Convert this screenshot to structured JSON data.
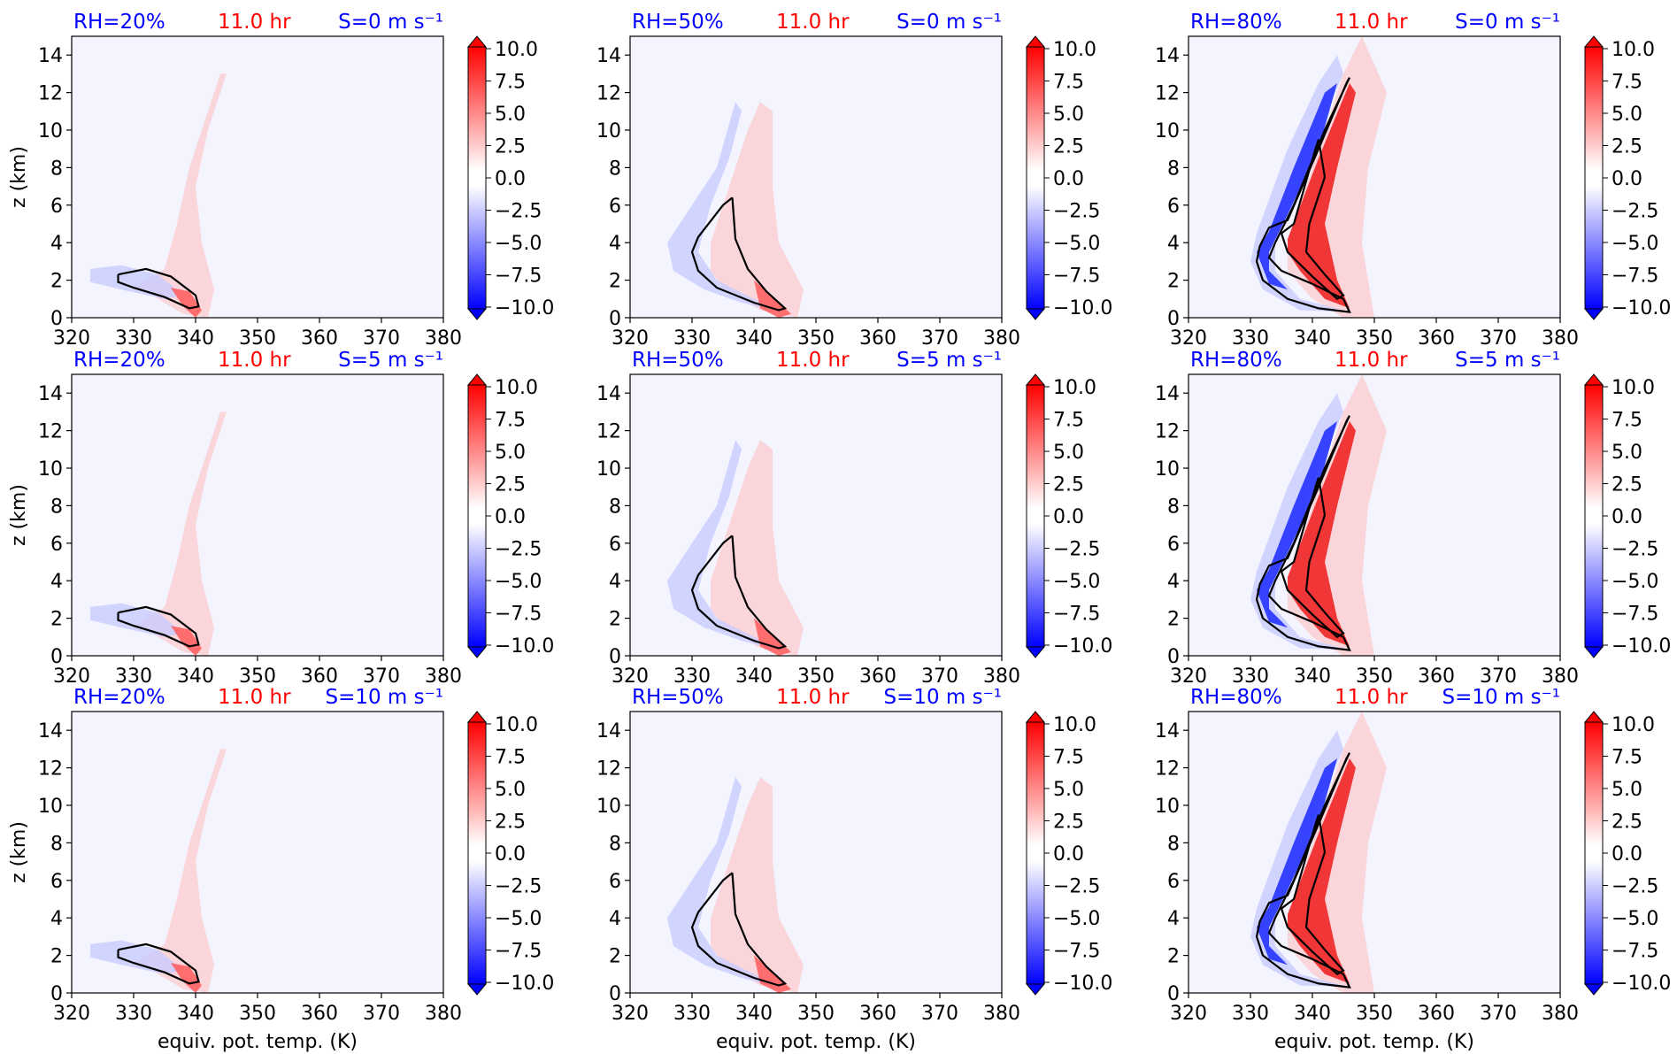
{
  "figure": {
    "xlabel": "equiv. pot. temp. (K)",
    "ylabel": "z (km)",
    "time_label": "11.0 hr",
    "colors": {
      "label_blue": "#0000ff",
      "label_red": "#ff0000",
      "background_field": "#f4f4ff",
      "contour": "#000000",
      "cmap_negative": "#0000ff",
      "cmap_positive": "#ff0000",
      "cmap_center": "#ffffff"
    }
  },
  "chart_data": [
    {
      "type": "heatmap",
      "rh": "RH=20%",
      "shear": "S=0 m s⁻¹",
      "time": "11.0 hr",
      "xlim": [
        320,
        380
      ],
      "ylim": [
        0,
        15
      ],
      "xticks": [
        320,
        330,
        340,
        350,
        360,
        370,
        380
      ],
      "yticks": [
        0,
        2,
        4,
        6,
        8,
        10,
        12,
        14
      ],
      "colorbar": {
        "vmin": -10,
        "vmax": 10,
        "ticks": [
          "10.0",
          "7.5",
          "5.0",
          "2.5",
          "0.0",
          "−2.5",
          "−5.0",
          "−7.5",
          "−10.0"
        ],
        "extend": "both"
      }
    },
    {
      "type": "heatmap",
      "rh": "RH=50%",
      "shear": "S=0 m s⁻¹",
      "time": "11.0 hr",
      "xlim": [
        320,
        380
      ],
      "ylim": [
        0,
        15
      ],
      "xticks": [
        320,
        330,
        340,
        350,
        360,
        370,
        380
      ],
      "yticks": [
        0,
        2,
        4,
        6,
        8,
        10,
        12,
        14
      ],
      "colorbar": {
        "vmin": -10,
        "vmax": 10,
        "ticks": [
          "10.0",
          "7.5",
          "5.0",
          "2.5",
          "0.0",
          "−2.5",
          "−5.0",
          "−7.5",
          "−10.0"
        ],
        "extend": "both"
      }
    },
    {
      "type": "heatmap",
      "rh": "RH=80%",
      "shear": "S=0 m s⁻¹",
      "time": "11.0 hr",
      "xlim": [
        320,
        380
      ],
      "ylim": [
        0,
        15
      ],
      "xticks": [
        320,
        330,
        340,
        350,
        360,
        370,
        380
      ],
      "yticks": [
        0,
        2,
        4,
        6,
        8,
        10,
        12,
        14
      ],
      "colorbar": {
        "vmin": -10,
        "vmax": 10,
        "ticks": [
          "10.0",
          "7.5",
          "5.0",
          "2.5",
          "0.0",
          "−2.5",
          "−5.0",
          "−7.5",
          "−10.0"
        ],
        "extend": "both"
      }
    },
    {
      "type": "heatmap",
      "rh": "RH=20%",
      "shear": "S=5 m s⁻¹",
      "time": "11.0 hr",
      "xlim": [
        320,
        380
      ],
      "ylim": [
        0,
        15
      ],
      "xticks": [
        320,
        330,
        340,
        350,
        360,
        370,
        380
      ],
      "yticks": [
        0,
        2,
        4,
        6,
        8,
        10,
        12,
        14
      ],
      "colorbar": {
        "vmin": -10,
        "vmax": 10,
        "ticks": [
          "10.0",
          "7.5",
          "5.0",
          "2.5",
          "0.0",
          "−2.5",
          "−5.0",
          "−7.5",
          "−10.0"
        ],
        "extend": "both"
      }
    },
    {
      "type": "heatmap",
      "rh": "RH=50%",
      "shear": "S=5 m s⁻¹",
      "time": "11.0 hr",
      "xlim": [
        320,
        380
      ],
      "ylim": [
        0,
        15
      ],
      "xticks": [
        320,
        330,
        340,
        350,
        360,
        370,
        380
      ],
      "yticks": [
        0,
        2,
        4,
        6,
        8,
        10,
        12,
        14
      ],
      "colorbar": {
        "vmin": -10,
        "vmax": 10,
        "ticks": [
          "10.0",
          "7.5",
          "5.0",
          "2.5",
          "0.0",
          "−2.5",
          "−5.0",
          "−7.5",
          "−10.0"
        ],
        "extend": "both"
      }
    },
    {
      "type": "heatmap",
      "rh": "RH=80%",
      "shear": "S=5 m s⁻¹",
      "time": "11.0 hr",
      "xlim": [
        320,
        380
      ],
      "ylim": [
        0,
        15
      ],
      "xticks": [
        320,
        330,
        340,
        350,
        360,
        370,
        380
      ],
      "yticks": [
        0,
        2,
        4,
        6,
        8,
        10,
        12,
        14
      ],
      "colorbar": {
        "vmin": -10,
        "vmax": 10,
        "ticks": [
          "10.0",
          "7.5",
          "5.0",
          "2.5",
          "0.0",
          "−2.5",
          "−5.0",
          "−7.5",
          "−10.0"
        ],
        "extend": "both"
      }
    },
    {
      "type": "heatmap",
      "rh": "RH=20%",
      "shear": "S=10 m s⁻¹",
      "time": "11.0 hr",
      "xlim": [
        320,
        380
      ],
      "ylim": [
        0,
        15
      ],
      "xticks": [
        320,
        330,
        340,
        350,
        360,
        370,
        380
      ],
      "yticks": [
        0,
        2,
        4,
        6,
        8,
        10,
        12,
        14
      ],
      "colorbar": {
        "vmin": -10,
        "vmax": 10,
        "ticks": [
          "10.0",
          "7.5",
          "5.0",
          "2.5",
          "0.0",
          "−2.5",
          "−5.0",
          "−7.5",
          "−10.0"
        ],
        "extend": "both"
      }
    },
    {
      "type": "heatmap",
      "rh": "RH=50%",
      "shear": "S=10 m s⁻¹",
      "time": "11.0 hr",
      "xlim": [
        320,
        380
      ],
      "ylim": [
        0,
        15
      ],
      "xticks": [
        320,
        330,
        340,
        350,
        360,
        370,
        380
      ],
      "yticks": [
        0,
        2,
        4,
        6,
        8,
        10,
        12,
        14
      ],
      "colorbar": {
        "vmin": -10,
        "vmax": 10,
        "ticks": [
          "10.0",
          "7.5",
          "5.0",
          "2.5",
          "0.0",
          "−2.5",
          "−5.0",
          "−7.5",
          "−10.0"
        ],
        "extend": "both"
      }
    },
    {
      "type": "heatmap",
      "rh": "RH=80%",
      "shear": "S=10 m s⁻¹",
      "time": "11.0 hr",
      "xlim": [
        320,
        380
      ],
      "ylim": [
        0,
        15
      ],
      "xticks": [
        320,
        330,
        340,
        350,
        360,
        370,
        380
      ],
      "yticks": [
        0,
        2,
        4,
        6,
        8,
        10,
        12,
        14
      ],
      "colorbar": {
        "vmin": -10,
        "vmax": 10,
        "ticks": [
          "10.0",
          "7.5",
          "5.0",
          "2.5",
          "0.0",
          "−2.5",
          "−5.0",
          "−7.5",
          "−10.0"
        ],
        "extend": "both"
      }
    }
  ]
}
